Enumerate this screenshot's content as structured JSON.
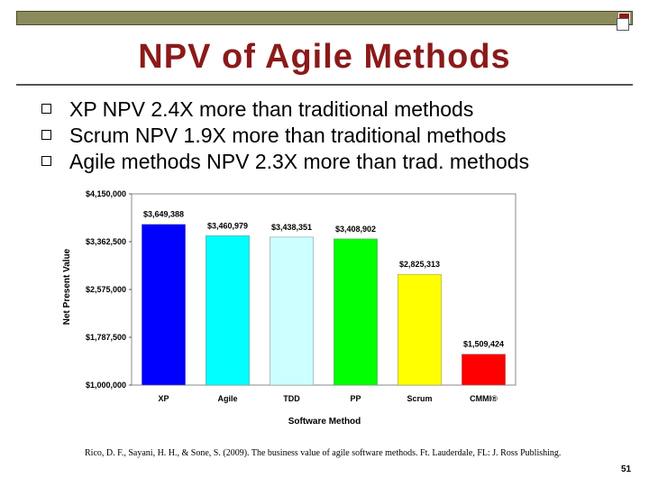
{
  "slide": {
    "title": "NPV of Agile Methods",
    "bullets": [
      "XP NPV 2.4X more than traditional methods",
      "Scrum NPV 1.9X more than traditional methods",
      "Agile methods NPV 2.3X more than trad. methods"
    ],
    "citation": "Rico, D. F., Sayani, H. H., & Sone, S. (2009). The business value of agile software methods. Ft. Lauderdale, FL: J. Ross Publishing.",
    "page_number": "51"
  },
  "chart_data": {
    "type": "bar",
    "title": "",
    "xlabel": "Software Method",
    "ylabel": "Net Present Value",
    "categories": [
      "XP",
      "Agile",
      "TDD",
      "PP",
      "Scrum",
      "CMMI®"
    ],
    "values": [
      3649388,
      3460979,
      3438351,
      3408902,
      2825313,
      1509424
    ],
    "data_labels": [
      "$3,649,388",
      "$3,460,979",
      "$3,438,351",
      "$3,408,902",
      "$2,825,313",
      "$1,509,424"
    ],
    "bar_colors": [
      "#0000ff",
      "#00ffff",
      "#ccffff",
      "#00ff00",
      "#ffff00",
      "#ff0000"
    ],
    "ylim": [
      1000000,
      4150000
    ],
    "yticks": [
      1000000,
      1787500,
      2575000,
      3362500,
      4150000
    ],
    "ytick_labels": [
      "$1,000,000",
      "$1,787,500",
      "$2,575,000",
      "$3,362,500",
      "$4,150,000"
    ],
    "grid": false,
    "legend": "none"
  }
}
